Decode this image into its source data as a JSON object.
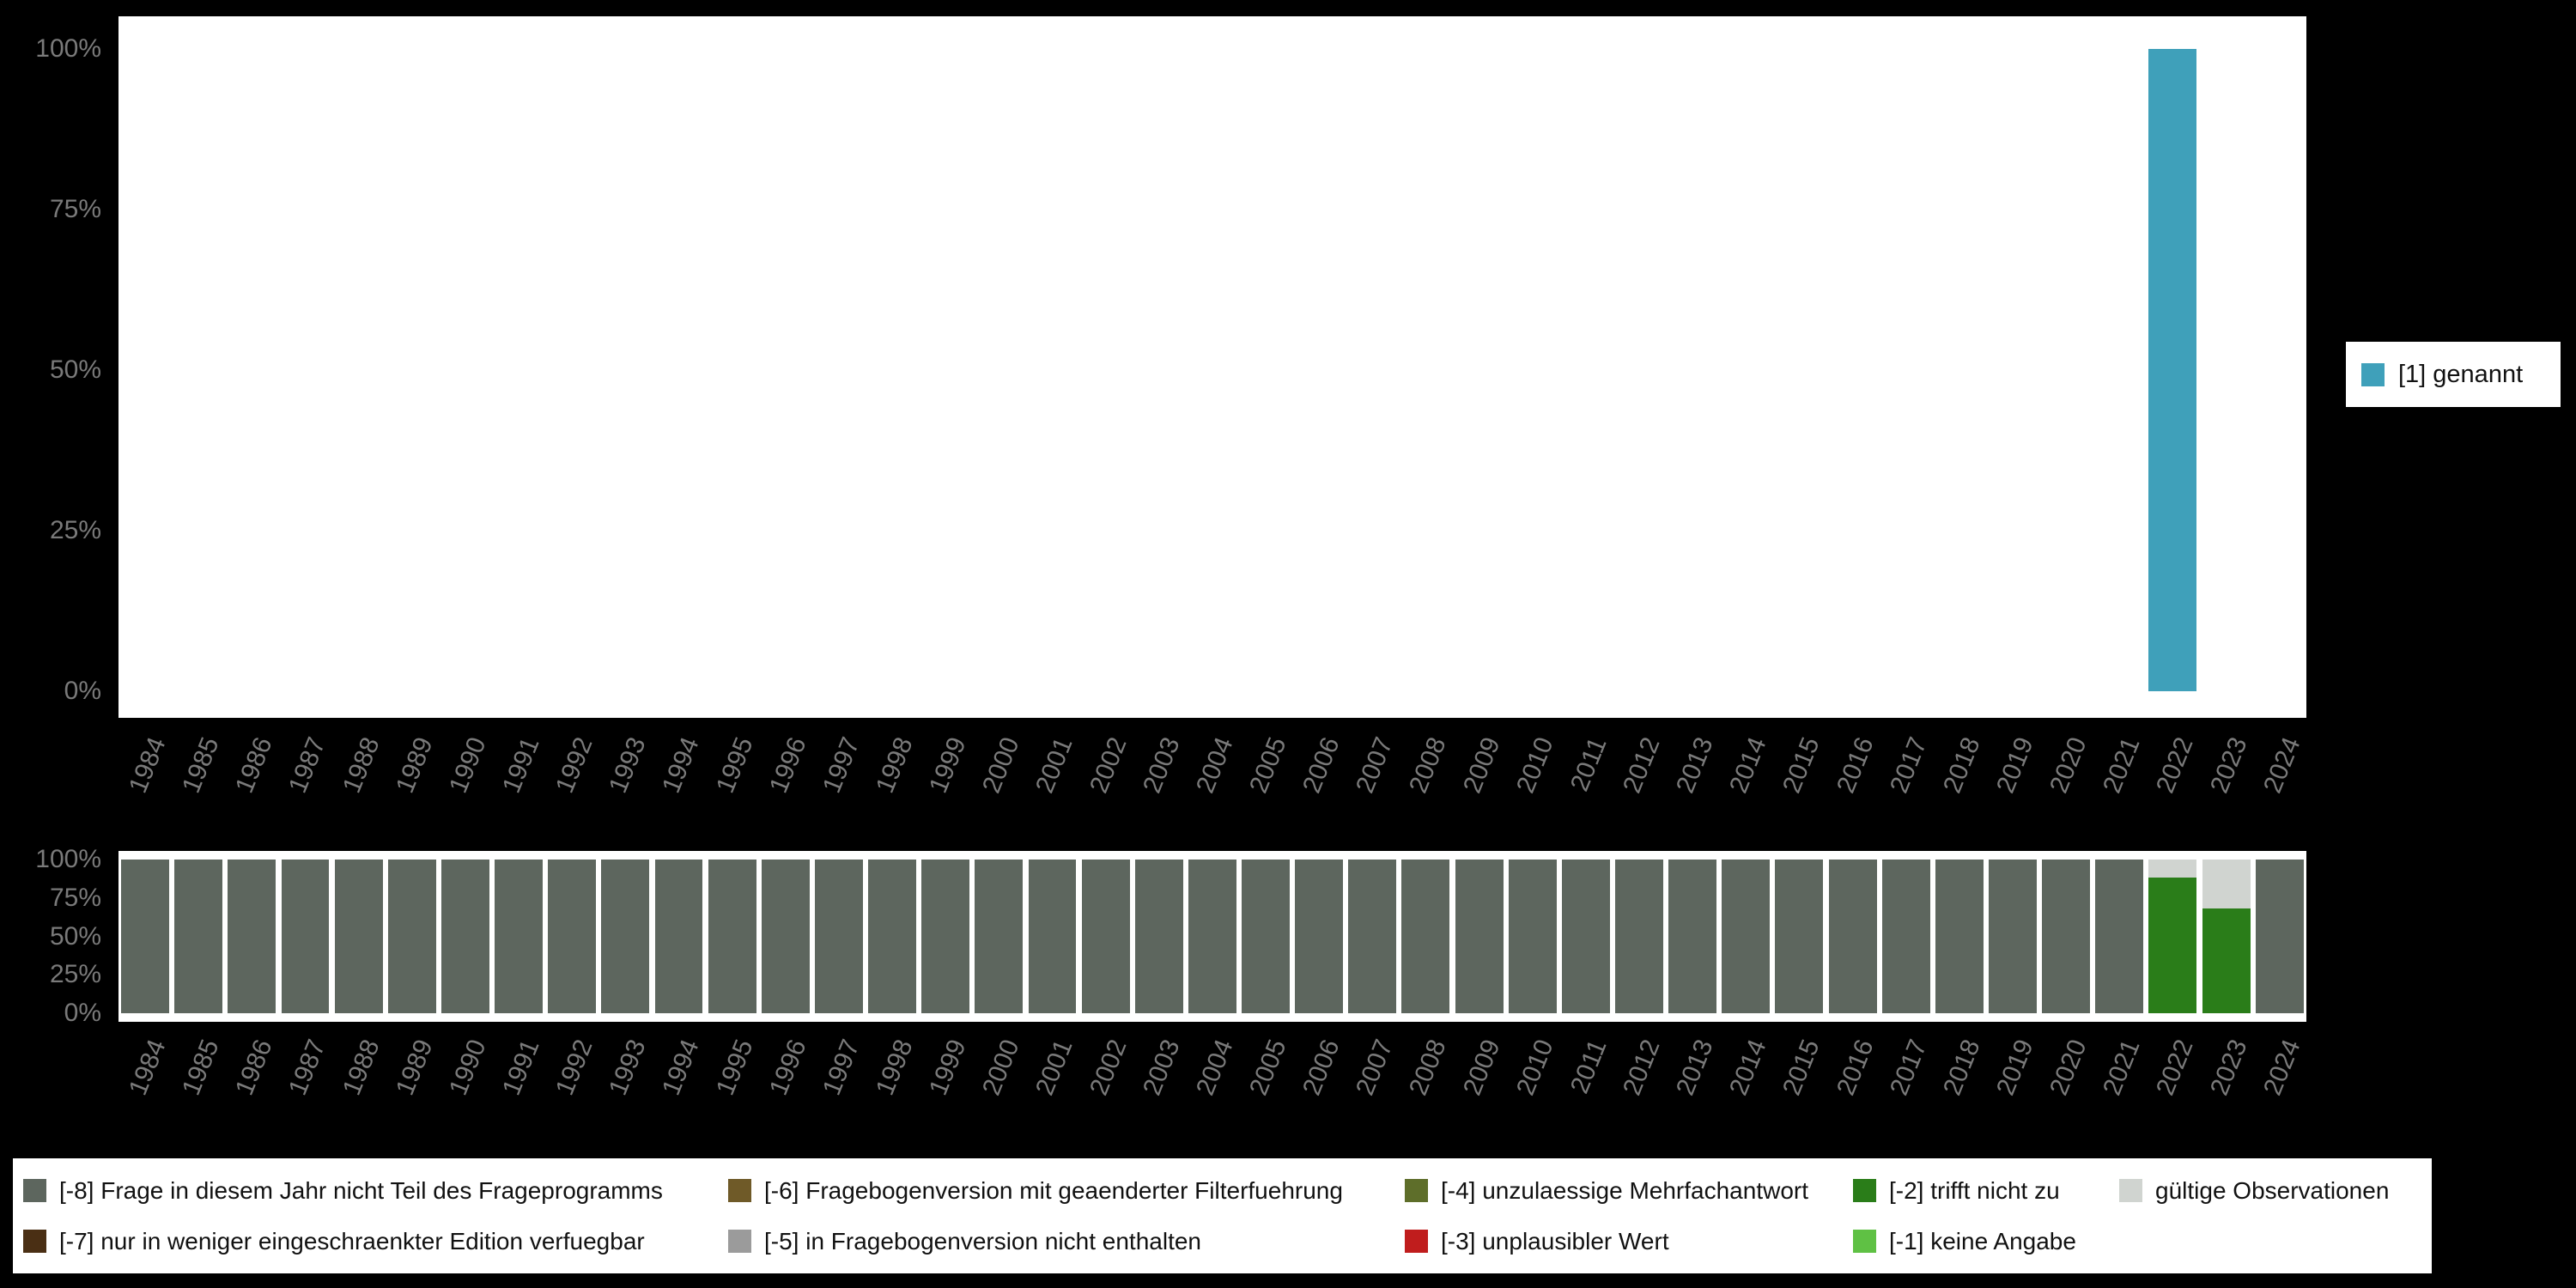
{
  "colors": {
    "background": "#000000",
    "panel_bg": "#ffffff",
    "axis_text": "#7a7a7a",
    "legend_text": "#111111",
    "genannt": "#3fa0ba",
    "frage_nicht_teil": "#5d665e",
    "trifft_nicht_zu": "#2a7d19",
    "gueltige_observationen": "#d0d4d0"
  },
  "legend_right": {
    "items": [
      {
        "label": "[1] genannt",
        "color": "#3fa0ba"
      }
    ]
  },
  "legend_bottom": {
    "rows": [
      [
        {
          "code": "-8",
          "label": "[-8] Frage in diesem Jahr nicht Teil des Frageprogramms",
          "color": "#5d665e"
        },
        {
          "code": "-6",
          "label": "[-6] Fragebogenversion mit geaenderter Filterfuehrung",
          "color": "#6f5a28"
        },
        {
          "code": "-4",
          "label": "[-4] unzulaessige Mehrfachantwort",
          "color": "#5e6e2a"
        },
        {
          "code": "-2",
          "label": "[-2] trifft nicht zu",
          "color": "#2a7d19"
        },
        {
          "code": "valid",
          "label": "gültige Observationen",
          "color": "#d0d4d0"
        }
      ],
      [
        {
          "code": "-7",
          "label": "[-7] nur in weniger eingeschraenkter Edition verfuegbar",
          "color": "#4a2f14"
        },
        {
          "code": "-5",
          "label": "[-5] in Fragebogenversion nicht enthalten",
          "color": "#9b9b9b"
        },
        {
          "code": "-3",
          "label": "[-3] unplausibler Wert",
          "color": "#c01d1d"
        },
        {
          "code": "-1",
          "label": "[-1] keine Angabe",
          "color": "#5fc144"
        }
      ]
    ]
  },
  "chart_data": [
    {
      "type": "bar",
      "title": "",
      "xlabel": "",
      "ylabel": "",
      "ylim": [
        0,
        100
      ],
      "grid": false,
      "legend_position": "right",
      "yticks": [
        {
          "value": 0,
          "label": "0%"
        },
        {
          "value": 25,
          "label": "25%"
        },
        {
          "value": 50,
          "label": "50%"
        },
        {
          "value": 75,
          "label": "75%"
        },
        {
          "value": 100,
          "label": "100%"
        }
      ],
      "categories": [
        "1984",
        "1985",
        "1986",
        "1987",
        "1988",
        "1989",
        "1990",
        "1991",
        "1992",
        "1993",
        "1994",
        "1995",
        "1996",
        "1997",
        "1998",
        "1999",
        "2000",
        "2001",
        "2002",
        "2003",
        "2004",
        "2005",
        "2006",
        "2007",
        "2008",
        "2009",
        "2010",
        "2011",
        "2012",
        "2013",
        "2014",
        "2015",
        "2016",
        "2017",
        "2018",
        "2019",
        "2020",
        "2021",
        "2022",
        "2023",
        "2024"
      ],
      "series": [
        {
          "name": "[1] genannt",
          "color": "#3fa0ba",
          "values": [
            0,
            0,
            0,
            0,
            0,
            0,
            0,
            0,
            0,
            0,
            0,
            0,
            0,
            0,
            0,
            0,
            0,
            0,
            0,
            0,
            0,
            0,
            0,
            0,
            0,
            0,
            0,
            0,
            0,
            0,
            0,
            0,
            0,
            0,
            0,
            0,
            0,
            0,
            100,
            0,
            0
          ]
        }
      ]
    },
    {
      "type": "bar",
      "stacked": true,
      "title": "",
      "xlabel": "",
      "ylabel": "",
      "ylim": [
        0,
        100
      ],
      "grid": false,
      "legend_position": "bottom",
      "yticks": [
        {
          "value": 0,
          "label": "0%"
        },
        {
          "value": 25,
          "label": "25%"
        },
        {
          "value": 50,
          "label": "50%"
        },
        {
          "value": 75,
          "label": "75%"
        },
        {
          "value": 100,
          "label": "100%"
        }
      ],
      "categories": [
        "1984",
        "1985",
        "1986",
        "1987",
        "1988",
        "1989",
        "1990",
        "1991",
        "1992",
        "1993",
        "1994",
        "1995",
        "1996",
        "1997",
        "1998",
        "1999",
        "2000",
        "2001",
        "2002",
        "2003",
        "2004",
        "2005",
        "2006",
        "2007",
        "2008",
        "2009",
        "2010",
        "2011",
        "2012",
        "2013",
        "2014",
        "2015",
        "2016",
        "2017",
        "2018",
        "2019",
        "2020",
        "2021",
        "2022",
        "2023",
        "2024"
      ],
      "series": [
        {
          "name": "[-2] trifft nicht zu",
          "color": "#2a7d19",
          "values": [
            0,
            0,
            0,
            0,
            0,
            0,
            0,
            0,
            0,
            0,
            0,
            0,
            0,
            0,
            0,
            0,
            0,
            0,
            0,
            0,
            0,
            0,
            0,
            0,
            0,
            0,
            0,
            0,
            0,
            0,
            0,
            0,
            0,
            0,
            0,
            0,
            0,
            0,
            88,
            68,
            0
          ]
        },
        {
          "name": "gültige Observationen",
          "color": "#d0d4d0",
          "values": [
            0,
            0,
            0,
            0,
            0,
            0,
            0,
            0,
            0,
            0,
            0,
            0,
            0,
            0,
            0,
            0,
            0,
            0,
            0,
            0,
            0,
            0,
            0,
            0,
            0,
            0,
            0,
            0,
            0,
            0,
            0,
            0,
            0,
            0,
            0,
            0,
            0,
            0,
            12,
            32,
            0
          ]
        },
        {
          "name": "[-8] Frage in diesem Jahr nicht Teil des Frageprogramms",
          "color": "#5d665e",
          "values": [
            100,
            100,
            100,
            100,
            100,
            100,
            100,
            100,
            100,
            100,
            100,
            100,
            100,
            100,
            100,
            100,
            100,
            100,
            100,
            100,
            100,
            100,
            100,
            100,
            100,
            100,
            100,
            100,
            100,
            100,
            100,
            100,
            100,
            100,
            100,
            100,
            100,
            100,
            0,
            0,
            100
          ]
        }
      ]
    }
  ]
}
